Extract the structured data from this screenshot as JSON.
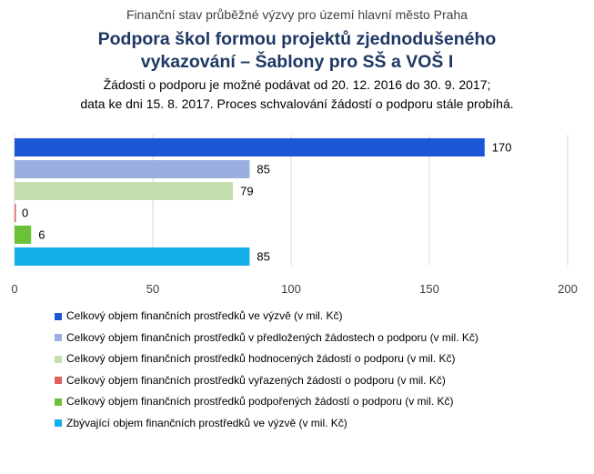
{
  "chart_data": {
    "type": "bar",
    "orientation": "horizontal",
    "supertitle": "Finanční stav průběžné výzvy pro území hlavní město Praha",
    "title_line1": "Podpora škol formou projektů zjednodušeného",
    "title_line2": "vykazování – Šablony pro SŠ a VOŠ I",
    "subtitle_line1": "Žádosti o podporu je možné podávat od 20. 12. 2016 do 30. 9. 2017;",
    "subtitle_line2": "data ke dni 15. 8. 2017. Proces schvalování žádostí o podporu stále probíhá.",
    "xlim": [
      0,
      200
    ],
    "xticks": [
      0,
      50,
      100,
      150,
      200
    ],
    "grid": true,
    "legend_position": "bottom",
    "series": [
      {
        "name": "Celkový objem finančních prostředků ve výzvě (v mil. Kč)",
        "value": 170,
        "label": "170",
        "color": "#1a56d6"
      },
      {
        "name": "Celkový objem finančních prostředků v předložených žádostech o podporu (v mil. Kč)",
        "value": 85,
        "label": "85",
        "color": "#9aaee0"
      },
      {
        "name": "Celkový objem finančních prostředků hodnocených žádostí o podporu (v mil. Kč)",
        "value": 79,
        "label": "79",
        "color": "#c4deb0"
      },
      {
        "name": "Celkový objem finančních prostředků vyřazených žádostí o podporu (v mil. Kč)",
        "value": 0,
        "label": "0",
        "color": "#e06060"
      },
      {
        "name": "Celkový objem finančních prostředků podpořených žádostí o podporu (v mil. Kč)",
        "value": 6,
        "label": "6",
        "color": "#6bc238"
      },
      {
        "name": "Zbývající objem finančních prostředků ve výzvě (v mil. Kč)",
        "value": 85,
        "label": "85",
        "color": "#12b0e8"
      }
    ]
  }
}
